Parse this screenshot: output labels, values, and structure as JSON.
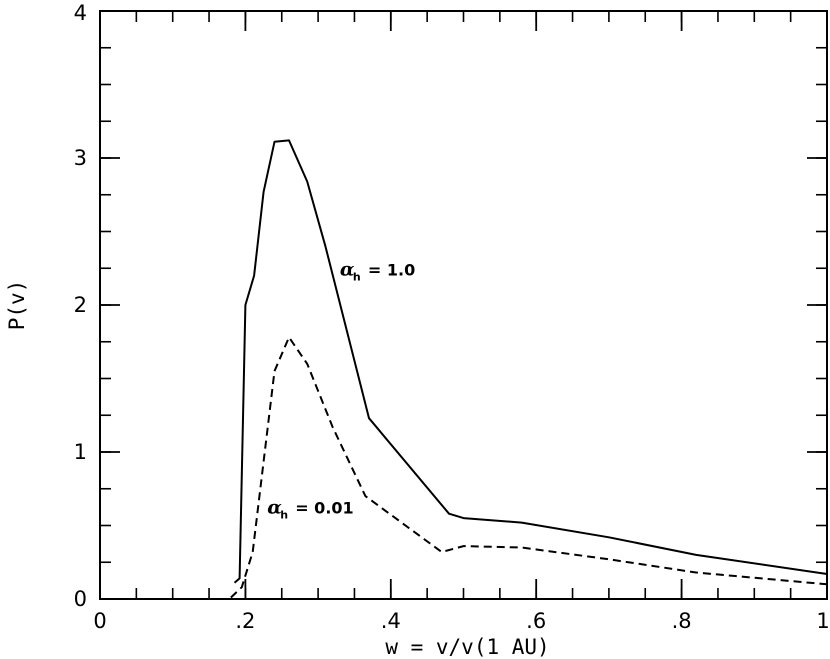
{
  "chart_data": {
    "type": "line",
    "xlabel": "w = v/v(1 AU)",
    "ylabel": "P(v)",
    "xlim": [
      0,
      1
    ],
    "ylim": [
      0,
      4
    ],
    "x_ticks": [
      {
        "value": 0,
        "label": "0"
      },
      {
        "value": 0.2,
        "label": ".2"
      },
      {
        "value": 0.4,
        "label": ".4"
      },
      {
        "value": 0.6,
        "label": ".6"
      },
      {
        "value": 0.8,
        "label": ".8"
      },
      {
        "value": 1,
        "label": "1"
      }
    ],
    "y_ticks": [
      {
        "value": 0,
        "label": "0"
      },
      {
        "value": 1,
        "label": "1"
      },
      {
        "value": 2,
        "label": "2"
      },
      {
        "value": 3,
        "label": "3"
      },
      {
        "value": 4,
        "label": "4"
      }
    ],
    "x_minor_step": 0.05,
    "y_minor_step": 0.25,
    "grid": false,
    "series": [
      {
        "line_style": "solid",
        "color": "#000000",
        "points": [
          [
            0.185,
            0.11
          ],
          [
            0.192,
            0.14
          ],
          [
            0.2,
            2.0
          ],
          [
            0.212,
            2.2
          ],
          [
            0.225,
            2.77
          ],
          [
            0.24,
            3.11
          ],
          [
            0.26,
            3.12
          ],
          [
            0.285,
            2.84
          ],
          [
            0.31,
            2.4
          ],
          [
            0.37,
            1.23
          ],
          [
            0.48,
            0.58
          ],
          [
            0.5,
            0.55
          ],
          [
            0.58,
            0.52
          ],
          [
            0.7,
            0.42
          ],
          [
            0.82,
            0.3
          ],
          [
            1.0,
            0.17
          ]
        ]
      },
      {
        "line_style": "dashed",
        "color": "#000000",
        "points": [
          [
            0.18,
            0.01
          ],
          [
            0.195,
            0.08
          ],
          [
            0.21,
            0.32
          ],
          [
            0.24,
            1.55
          ],
          [
            0.26,
            1.78
          ],
          [
            0.285,
            1.6
          ],
          [
            0.32,
            1.17
          ],
          [
            0.365,
            0.7
          ],
          [
            0.47,
            0.32
          ],
          [
            0.5,
            0.36
          ],
          [
            0.58,
            0.35
          ],
          [
            0.7,
            0.27
          ],
          [
            0.82,
            0.18
          ],
          [
            1.0,
            0.1
          ]
        ]
      }
    ],
    "annotations": [
      {
        "symbol": "α",
        "subscript": "h",
        "text": "= 1.0",
        "x": 0.33,
        "y": 2.2
      },
      {
        "symbol": "α",
        "subscript": "h",
        "text": "= 0.01",
        "x": 0.23,
        "y": 0.58
      }
    ]
  }
}
